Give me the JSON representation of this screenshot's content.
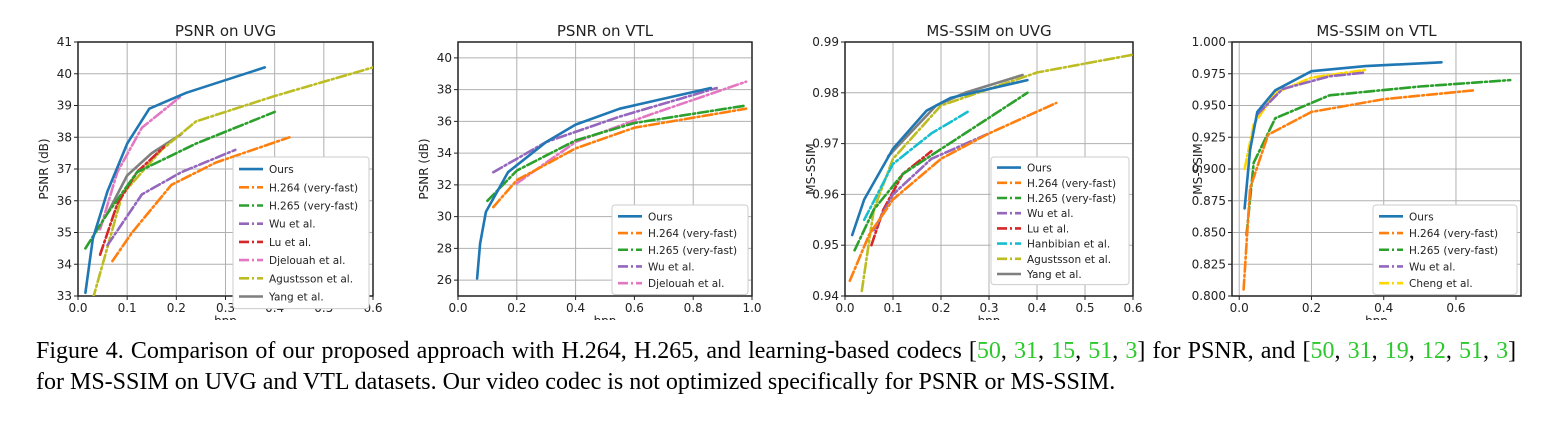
{
  "caption": {
    "lead": "Figure 4. Comparison of our proposed approach with H.264, H.265, and learning-based codecs [",
    "refs1": [
      "50",
      "31",
      "15",
      "51",
      "3"
    ],
    "mid": "] for PSNR, and [",
    "refs2": [
      "50",
      "31",
      "19",
      "12",
      "51",
      "3"
    ],
    "tail": "] for MS-SSIM on UVG and VTL datasets. Our video codec is not optimized specifically for PSNR or MS-SSIM."
  },
  "colors": {
    "ours": "#1f77b4",
    "h264": "#ff7f0e",
    "h265": "#2ca02c",
    "wu": "#9467bd",
    "lu": "#d62728",
    "djelouah": "#e377c2",
    "agustsson": "#bcbd22",
    "yang": "#7f7f7f",
    "hanbibian": "#17becf",
    "cheng": "#ffd700",
    "ref_link": "#2bc92b"
  },
  "chart_data": [
    {
      "type": "line",
      "title": "PSNR on UVG",
      "xlabel": "bpp",
      "ylabel": "PSNR (dB)",
      "xlim": [
        0.0,
        0.6
      ],
      "ylim": [
        33,
        41
      ],
      "xticks": [
        0.0,
        0.1,
        0.2,
        0.3,
        0.4,
        0.5,
        0.6
      ],
      "xtick_labels": [
        "0.0",
        "0.1",
        "0.2",
        "0.3",
        "0.4",
        "0.5",
        "0.6"
      ],
      "yticks": [
        33,
        34,
        35,
        36,
        37,
        38,
        39,
        40,
        41
      ],
      "ytick_labels": [
        "33",
        "34",
        "35",
        "36",
        "37",
        "38",
        "39",
        "40",
        "41"
      ],
      "grid": true,
      "legend": "right",
      "series": [
        {
          "name": "Ours",
          "color": "#1f77b4",
          "dash": "solid",
          "points": [
            [
              0.015,
              33.1
            ],
            [
              0.03,
              34.8
            ],
            [
              0.06,
              36.3
            ],
            [
              0.1,
              37.8
            ],
            [
              0.145,
              38.9
            ],
            [
              0.22,
              39.4
            ],
            [
              0.38,
              40.2
            ]
          ]
        },
        {
          "name": "H.264 (very-fast)",
          "color": "#ff7f0e",
          "dash": "dashdot",
          "points": [
            [
              0.07,
              34.1
            ],
            [
              0.11,
              35.0
            ],
            [
              0.19,
              36.5
            ],
            [
              0.28,
              37.2
            ],
            [
              0.43,
              38.0
            ]
          ]
        },
        {
          "name": "H.265 (very-fast)",
          "color": "#2ca02c",
          "dash": "dashdot",
          "points": [
            [
              0.015,
              34.5
            ],
            [
              0.06,
              35.6
            ],
            [
              0.12,
              36.9
            ],
            [
              0.24,
              37.8
            ],
            [
              0.4,
              38.8
            ]
          ]
        },
        {
          "name": "Wu et al.",
          "color": "#9467bd",
          "dash": "dashdot",
          "points": [
            [
              0.06,
              34.6
            ],
            [
              0.13,
              36.2
            ],
            [
              0.21,
              36.9
            ],
            [
              0.32,
              37.6
            ]
          ]
        },
        {
          "name": "Lu et al.",
          "color": "#d62728",
          "dash": "dashdot",
          "points": [
            [
              0.045,
              34.3
            ],
            [
              0.08,
              35.9
            ],
            [
              0.12,
              36.9
            ],
            [
              0.175,
              37.7
            ]
          ]
        },
        {
          "name": "Djelouah et al.",
          "color": "#e377c2",
          "dash": "dashdot",
          "points": [
            [
              0.045,
              35.1
            ],
            [
              0.08,
              36.9
            ],
            [
              0.13,
              38.3
            ],
            [
              0.21,
              39.3
            ]
          ]
        },
        {
          "name": "Agustsson et al.",
          "color": "#bcbd22",
          "dash": "dashdot",
          "points": [
            [
              0.03,
              32.9
            ],
            [
              0.09,
              36.2
            ],
            [
              0.17,
              37.6
            ],
            [
              0.24,
              38.5
            ],
            [
              0.4,
              39.3
            ],
            [
              0.6,
              40.2
            ]
          ]
        },
        {
          "name": "Yang et al.",
          "color": "#7f7f7f",
          "dash": "solid",
          "points": [
            [
              0.06,
              35.6
            ],
            [
              0.1,
              36.8
            ],
            [
              0.15,
              37.5
            ],
            [
              0.21,
              38.1
            ]
          ]
        }
      ]
    },
    {
      "type": "line",
      "title": "PSNR on VTL",
      "xlabel": "bpp",
      "ylabel": "PSNR (dB)",
      "xlim": [
        0.0,
        1.0
      ],
      "ylim": [
        25,
        41
      ],
      "xticks": [
        0.0,
        0.2,
        0.4,
        0.6,
        0.8,
        1.0
      ],
      "xtick_labels": [
        "0.0",
        "0.2",
        "0.4",
        "0.6",
        "0.8",
        "1.0"
      ],
      "yticks": [
        26,
        28,
        30,
        32,
        34,
        36,
        38,
        40
      ],
      "ytick_labels": [
        "26",
        "28",
        "30",
        "32",
        "34",
        "36",
        "38",
        "40"
      ],
      "grid": true,
      "legend": "lower right",
      "series": [
        {
          "name": "Ours",
          "color": "#1f77b4",
          "dash": "solid",
          "points": [
            [
              0.065,
              26.1
            ],
            [
              0.075,
              28.3
            ],
            [
              0.095,
              30.3
            ],
            [
              0.17,
              32.8
            ],
            [
              0.3,
              34.7
            ],
            [
              0.4,
              35.8
            ],
            [
              0.55,
              36.8
            ],
            [
              0.86,
              38.1
            ]
          ]
        },
        {
          "name": "H.264 (very-fast)",
          "color": "#ff7f0e",
          "dash": "dashdot",
          "points": [
            [
              0.12,
              30.6
            ],
            [
              0.2,
              32.3
            ],
            [
              0.4,
              34.3
            ],
            [
              0.6,
              35.6
            ],
            [
              0.98,
              36.8
            ]
          ]
        },
        {
          "name": "H.265 (very-fast)",
          "color": "#2ca02c",
          "dash": "dashdot",
          "points": [
            [
              0.1,
              31.0
            ],
            [
              0.2,
              32.9
            ],
            [
              0.4,
              34.8
            ],
            [
              0.6,
              35.9
            ],
            [
              0.98,
              37.0
            ]
          ]
        },
        {
          "name": "Wu et al.",
          "color": "#9467bd",
          "dash": "dashdot",
          "points": [
            [
              0.12,
              32.8
            ],
            [
              0.3,
              34.7
            ],
            [
              0.55,
              36.3
            ],
            [
              0.88,
              38.1
            ]
          ]
        },
        {
          "name": "Djelouah et al.",
          "color": "#e377c2",
          "dash": "dashdot",
          "points": [
            [
              0.2,
              32.1
            ],
            [
              0.4,
              34.7
            ],
            [
              0.65,
              36.4
            ],
            [
              0.98,
              38.5
            ]
          ]
        }
      ]
    },
    {
      "type": "line",
      "title": "MS-SSIM on UVG",
      "xlabel": "bpp",
      "ylabel": "MS-SSIM",
      "xlim": [
        0.0,
        0.6
      ],
      "ylim": [
        0.94,
        0.99
      ],
      "xticks": [
        0.0,
        0.1,
        0.2,
        0.3,
        0.4,
        0.5,
        0.6
      ],
      "xtick_labels": [
        "0.0",
        "0.1",
        "0.2",
        "0.3",
        "0.4",
        "0.5",
        "0.6"
      ],
      "yticks": [
        0.94,
        0.95,
        0.96,
        0.97,
        0.98,
        0.99
      ],
      "ytick_labels": [
        "0.94",
        "0.95",
        "0.96",
        "0.97",
        "0.98",
        "0.99"
      ],
      "grid": true,
      "legend": "lower right",
      "series": [
        {
          "name": "Ours",
          "color": "#1f77b4",
          "dash": "solid",
          "points": [
            [
              0.015,
              0.952
            ],
            [
              0.04,
              0.959
            ],
            [
              0.1,
              0.969
            ],
            [
              0.17,
              0.9765
            ],
            [
              0.22,
              0.979
            ],
            [
              0.38,
              0.9825
            ]
          ]
        },
        {
          "name": "H.264 (very-fast)",
          "color": "#ff7f0e",
          "dash": "dashdot",
          "points": [
            [
              0.01,
              0.943
            ],
            [
              0.05,
              0.952
            ],
            [
              0.1,
              0.959
            ],
            [
              0.2,
              0.967
            ],
            [
              0.3,
              0.972
            ],
            [
              0.44,
              0.978
            ]
          ]
        },
        {
          "name": "H.265 (very-fast)",
          "color": "#2ca02c",
          "dash": "dashdot",
          "points": [
            [
              0.02,
              0.949
            ],
            [
              0.06,
              0.957
            ],
            [
              0.12,
              0.964
            ],
            [
              0.25,
              0.972
            ],
            [
              0.38,
              0.98
            ]
          ]
        },
        {
          "name": "Wu et al.",
          "color": "#9467bd",
          "dash": "dashdot",
          "points": [
            [
              0.06,
              0.953
            ],
            [
              0.1,
              0.96
            ],
            [
              0.18,
              0.967
            ],
            [
              0.3,
              0.972
            ]
          ]
        },
        {
          "name": "Lu et al.",
          "color": "#d62728",
          "dash": "dashdot",
          "points": [
            [
              0.055,
              0.95
            ],
            [
              0.08,
              0.957
            ],
            [
              0.12,
              0.964
            ],
            [
              0.18,
              0.9685
            ]
          ]
        },
        {
          "name": "Hanbibian et al.",
          "color": "#17becf",
          "dash": "dashdot",
          "points": [
            [
              0.04,
              0.955
            ],
            [
              0.1,
              0.966
            ],
            [
              0.18,
              0.972
            ],
            [
              0.26,
              0.9765
            ]
          ]
        },
        {
          "name": "Agustsson et al.",
          "color": "#bcbd22",
          "dash": "dashdot",
          "points": [
            [
              0.035,
              0.941
            ],
            [
              0.06,
              0.957
            ],
            [
              0.1,
              0.967
            ],
            [
              0.2,
              0.9775
            ],
            [
              0.4,
              0.984
            ],
            [
              0.6,
              0.9875
            ]
          ]
        },
        {
          "name": "Yang et al.",
          "color": "#7f7f7f",
          "dash": "solid",
          "points": [
            [
              0.09,
              0.9675
            ],
            [
              0.14,
              0.9725
            ],
            [
              0.19,
              0.9775
            ],
            [
              0.25,
              0.98
            ],
            [
              0.37,
              0.9835
            ]
          ]
        }
      ]
    },
    {
      "type": "line",
      "title": "MS-SSIM on VTL",
      "xlabel": "bpp",
      "ylabel": "MS-SSIM",
      "xlim": [
        -0.02,
        0.78
      ],
      "ylim": [
        0.8,
        1.0
      ],
      "xticks": [
        0.0,
        0.2,
        0.4,
        0.6
      ],
      "xtick_labels": [
        "0.0",
        "0.2",
        "0.4",
        "0.6"
      ],
      "yticks": [
        0.8,
        0.825,
        0.85,
        0.875,
        0.9,
        0.925,
        0.95,
        0.975,
        1.0
      ],
      "ytick_labels": [
        "0.800",
        "0.825",
        "0.850",
        "0.875",
        "0.900",
        "0.925",
        "0.950",
        "0.975",
        "1.000"
      ],
      "grid": true,
      "legend": "lower right",
      "series": [
        {
          "name": "Ours",
          "color": "#1f77b4",
          "dash": "solid",
          "points": [
            [
              0.015,
              0.869
            ],
            [
              0.03,
              0.915
            ],
            [
              0.05,
              0.945
            ],
            [
              0.1,
              0.962
            ],
            [
              0.2,
              0.977
            ],
            [
              0.35,
              0.981
            ],
            [
              0.56,
              0.984
            ]
          ]
        },
        {
          "name": "H.264 (very-fast)",
          "color": "#ff7f0e",
          "dash": "dashdot",
          "points": [
            [
              0.012,
              0.805
            ],
            [
              0.03,
              0.885
            ],
            [
              0.08,
              0.927
            ],
            [
              0.2,
              0.945
            ],
            [
              0.4,
              0.955
            ],
            [
              0.65,
              0.962
            ]
          ]
        },
        {
          "name": "H.265 (very-fast)",
          "color": "#2ca02c",
          "dash": "dashdot",
          "points": [
            [
              0.02,
              0.848
            ],
            [
              0.04,
              0.905
            ],
            [
              0.1,
              0.94
            ],
            [
              0.25,
              0.958
            ],
            [
              0.5,
              0.965
            ],
            [
              0.75,
              0.97
            ]
          ]
        },
        {
          "name": "Wu et al.",
          "color": "#9467bd",
          "dash": "dashdot",
          "points": [
            [
              0.05,
              0.943
            ],
            [
              0.12,
              0.963
            ],
            [
              0.25,
              0.973
            ],
            [
              0.35,
              0.976
            ]
          ]
        },
        {
          "name": "Cheng et al.",
          "color": "#ffd700",
          "dash": "dashdot",
          "points": [
            [
              0.015,
              0.9
            ],
            [
              0.04,
              0.935
            ],
            [
              0.1,
              0.96
            ],
            [
              0.2,
              0.972
            ],
            [
              0.35,
              0.978
            ]
          ]
        }
      ]
    }
  ]
}
